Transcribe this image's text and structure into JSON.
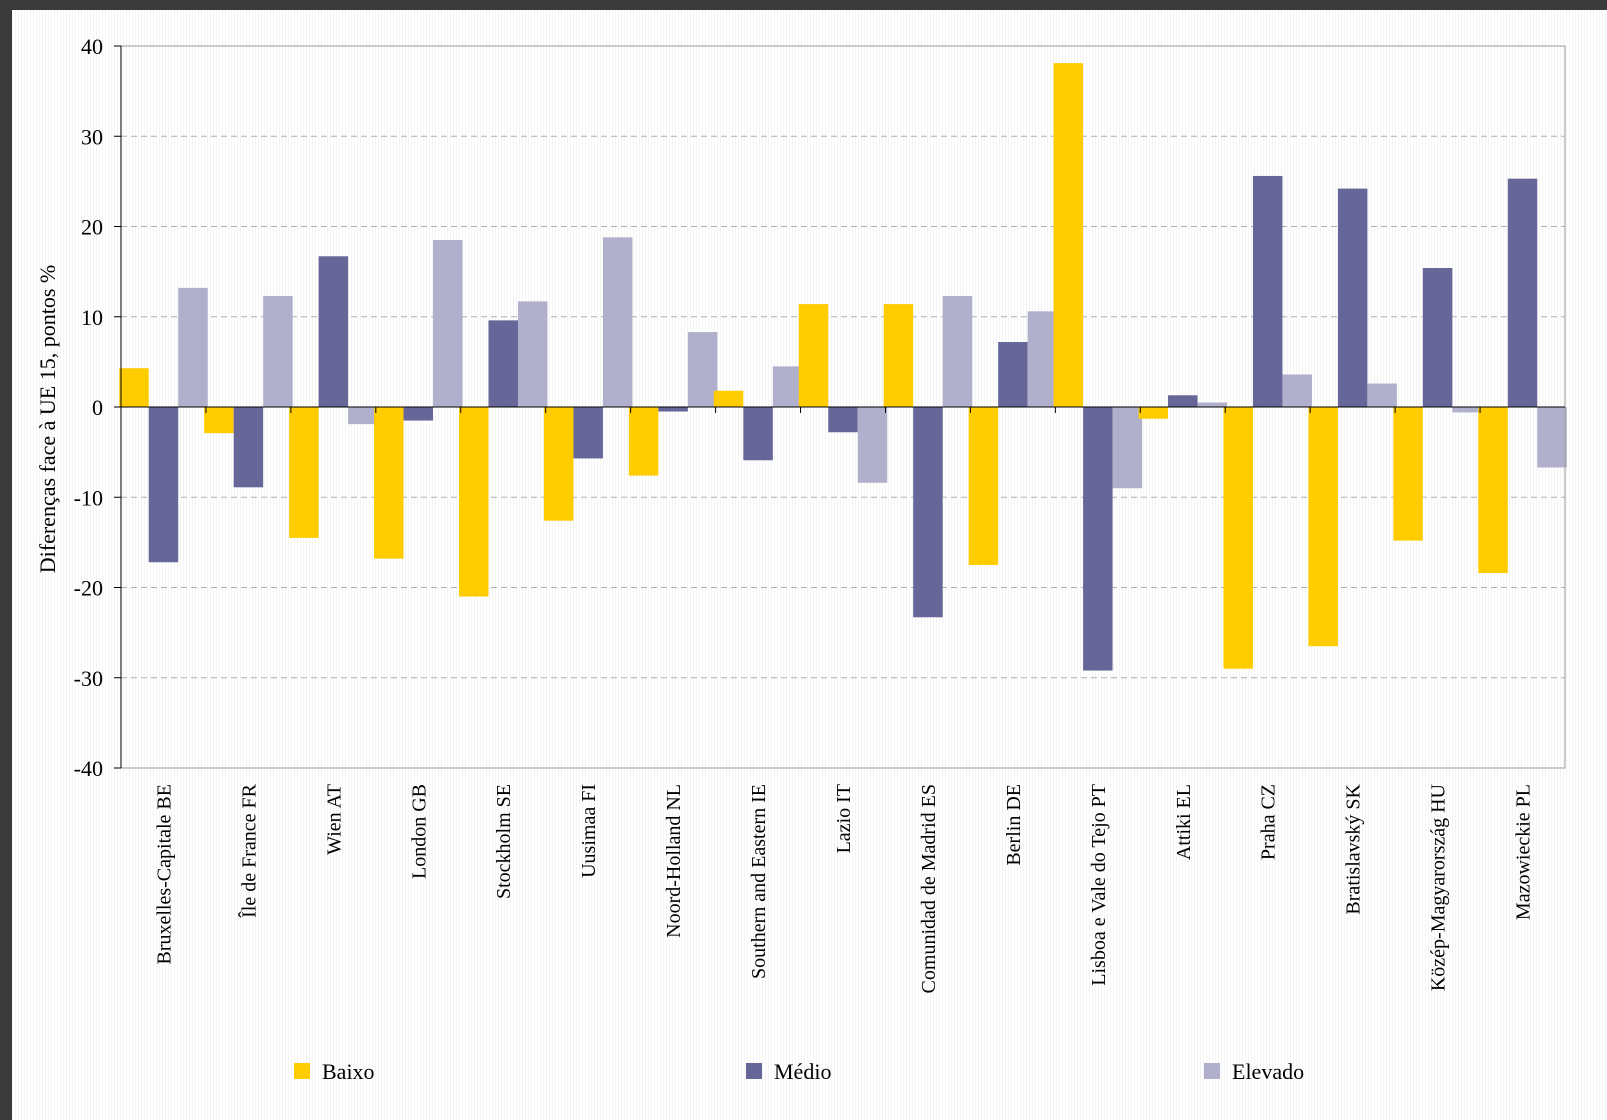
{
  "chart_data": {
    "type": "bar",
    "title": "",
    "xlabel": "",
    "ylabel": "Diferenças face à UE 15, pontos %",
    "ylim": [
      -40,
      40
    ],
    "yticks": [
      -40,
      -30,
      -20,
      -10,
      0,
      10,
      20,
      30,
      40
    ],
    "grid": true,
    "legend_position": "bottom",
    "categories": [
      "Bruxelles-Capitale BE",
      "Île de France FR",
      "Wien AT",
      "London GB",
      "Stockholm SE",
      "Uusimaa FI",
      "Noord-Holland NL",
      "Southern and Eastern IE",
      "Lazio IT",
      "Comunidad de Madrid ES",
      "Berlin DE",
      "Lisboa e Vale do Tejo PT",
      "Attiki EL",
      "Praha CZ",
      "Bratislavský SK",
      "Közép-Magyarország HU",
      "Mazowieckie PL"
    ],
    "series": [
      {
        "name": "Baixo",
        "color": "#FFCC00",
        "values": [
          4.3,
          -2.9,
          -14.5,
          -16.8,
          -21.0,
          -12.6,
          -7.6,
          1.8,
          11.4,
          11.4,
          -17.5,
          38.1,
          -1.3,
          -29.0,
          -26.5,
          -14.8,
          -18.4
        ]
      },
      {
        "name": "Médio",
        "color": "#666699",
        "values": [
          -17.2,
          -8.9,
          16.7,
          -1.5,
          9.6,
          -5.7,
          -0.5,
          -5.9,
          -2.8,
          -23.3,
          7.2,
          -29.2,
          1.3,
          25.6,
          24.2,
          15.4,
          25.3
        ]
      },
      {
        "name": "Elevado",
        "color": "#B0B0CC",
        "values": [
          13.2,
          12.3,
          -1.9,
          18.5,
          11.7,
          18.8,
          8.3,
          4.5,
          -8.4,
          12.3,
          10.6,
          -9.0,
          0.5,
          3.6,
          2.6,
          -0.6,
          -6.7
        ]
      }
    ]
  }
}
